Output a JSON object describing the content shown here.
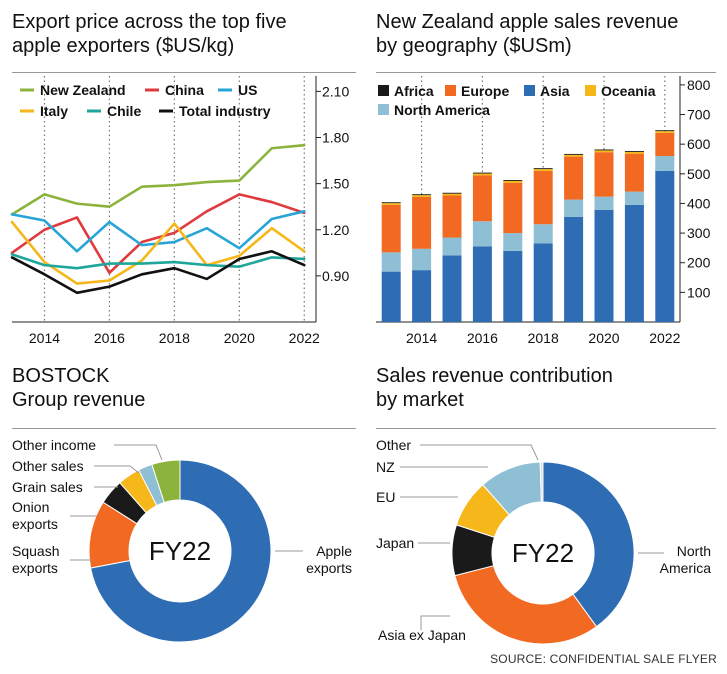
{
  "chart_data": [
    {
      "type": "line",
      "title": "Export price across the top five apple exporters ($US/kg)",
      "x": [
        2013,
        2014,
        2015,
        2016,
        2017,
        2018,
        2019,
        2020,
        2021,
        2022
      ],
      "xticks": [
        "2014",
        "2016",
        "2018",
        "2020",
        "2022"
      ],
      "yticks": [
        "0.90",
        "1.20",
        "1.50",
        "1.80",
        "2.10"
      ],
      "ylim": [
        0.6,
        2.2
      ],
      "grid": "vertical dotted",
      "legend": "top",
      "series": [
        {
          "name": "New Zealand",
          "color": "#8cb43c",
          "values": [
            1.3,
            1.43,
            1.37,
            1.35,
            1.48,
            1.49,
            1.51,
            1.52,
            1.73,
            1.75
          ]
        },
        {
          "name": "China",
          "color": "#e03a3e",
          "values": [
            1.05,
            1.2,
            1.28,
            0.92,
            1.12,
            1.18,
            1.32,
            1.43,
            1.38,
            1.31
          ]
        },
        {
          "name": "US",
          "color": "#27a5d6",
          "values": [
            1.3,
            1.26,
            1.06,
            1.25,
            1.1,
            1.12,
            1.21,
            1.08,
            1.27,
            1.32
          ]
        },
        {
          "name": "Italy",
          "color": "#f5b719",
          "values": [
            1.25,
            0.99,
            0.85,
            0.87,
            1.0,
            1.24,
            0.97,
            1.03,
            1.21,
            1.06
          ]
        },
        {
          "name": "Chile",
          "color": "#1fa69b",
          "values": [
            1.04,
            0.97,
            0.95,
            0.98,
            0.98,
            0.99,
            0.97,
            0.96,
            1.02,
            1.01
          ]
        },
        {
          "name": "Total industry",
          "color": "#111111",
          "values": [
            1.02,
            0.91,
            0.79,
            0.83,
            0.91,
            0.95,
            0.88,
            1.01,
            1.06,
            0.97
          ]
        }
      ]
    },
    {
      "type": "bar",
      "stacked": true,
      "title": "New Zealand apple sales revenue by geography ($USm)",
      "x": [
        2013,
        2014,
        2015,
        2016,
        2017,
        2018,
        2019,
        2020,
        2021,
        2022
      ],
      "xticks": [
        "2014",
        "2016",
        "2018",
        "2020",
        "2022"
      ],
      "yticks": [
        "100",
        "200",
        "300",
        "400",
        "500",
        "600",
        "700",
        "800"
      ],
      "ylim": [
        0,
        830
      ],
      "grid": "vertical dotted",
      "legend": "top",
      "series": [
        {
          "name": "Africa",
          "color": "#1a1a1a",
          "values": [
            3,
            3,
            3,
            3,
            3,
            3,
            3,
            3,
            3,
            3
          ]
        },
        {
          "name": "Europe",
          "color": "#f26a22",
          "values": [
            160,
            175,
            142,
            155,
            170,
            180,
            145,
            150,
            128,
            78
          ]
        },
        {
          "name": "Asia",
          "color": "#2e6db4",
          "values": [
            170,
            175,
            225,
            255,
            240,
            265,
            355,
            378,
            395,
            510
          ]
        },
        {
          "name": "Oceania",
          "color": "#f5b719",
          "values": [
            6,
            6,
            6,
            6,
            6,
            6,
            6,
            6,
            6,
            6
          ]
        },
        {
          "name": "North America",
          "color": "#8fbfd4",
          "values": [
            65,
            72,
            60,
            85,
            60,
            65,
            58,
            45,
            45,
            50
          ]
        }
      ]
    },
    {
      "type": "pie",
      "title": "BOSTOCK Group revenue",
      "center_label": "FY22",
      "slices": [
        {
          "label": "Apple exports",
          "value": 72,
          "color": "#2e6db4"
        },
        {
          "label": "Squash exports",
          "value": 12,
          "color": "#f26a22"
        },
        {
          "label": "Onion exports",
          "value": 4.5,
          "color": "#1a1a1a"
        },
        {
          "label": "Grain sales",
          "value": 4,
          "color": "#f5b719"
        },
        {
          "label": "Other sales",
          "value": 2.5,
          "color": "#8fbfd4"
        },
        {
          "label": "Other income",
          "value": 5,
          "color": "#8cb43c"
        }
      ]
    },
    {
      "type": "pie",
      "title": "Sales revenue contribution by market",
      "center_label": "FY22",
      "slices": [
        {
          "label": "North America",
          "value": 40,
          "color": "#2e6db4"
        },
        {
          "label": "Asia ex Japan",
          "value": 31,
          "color": "#f26a22"
        },
        {
          "label": "Japan",
          "value": 9,
          "color": "#1a1a1a"
        },
        {
          "label": "EU",
          "value": 8.5,
          "color": "#f5b719"
        },
        {
          "label": "NZ",
          "value": 11,
          "color": "#8fbfd4"
        },
        {
          "label": "Other",
          "value": 0.5,
          "color": "#dddddd"
        }
      ]
    }
  ],
  "source": "SOURCE: CONFIDENTIAL SALE FLYER"
}
